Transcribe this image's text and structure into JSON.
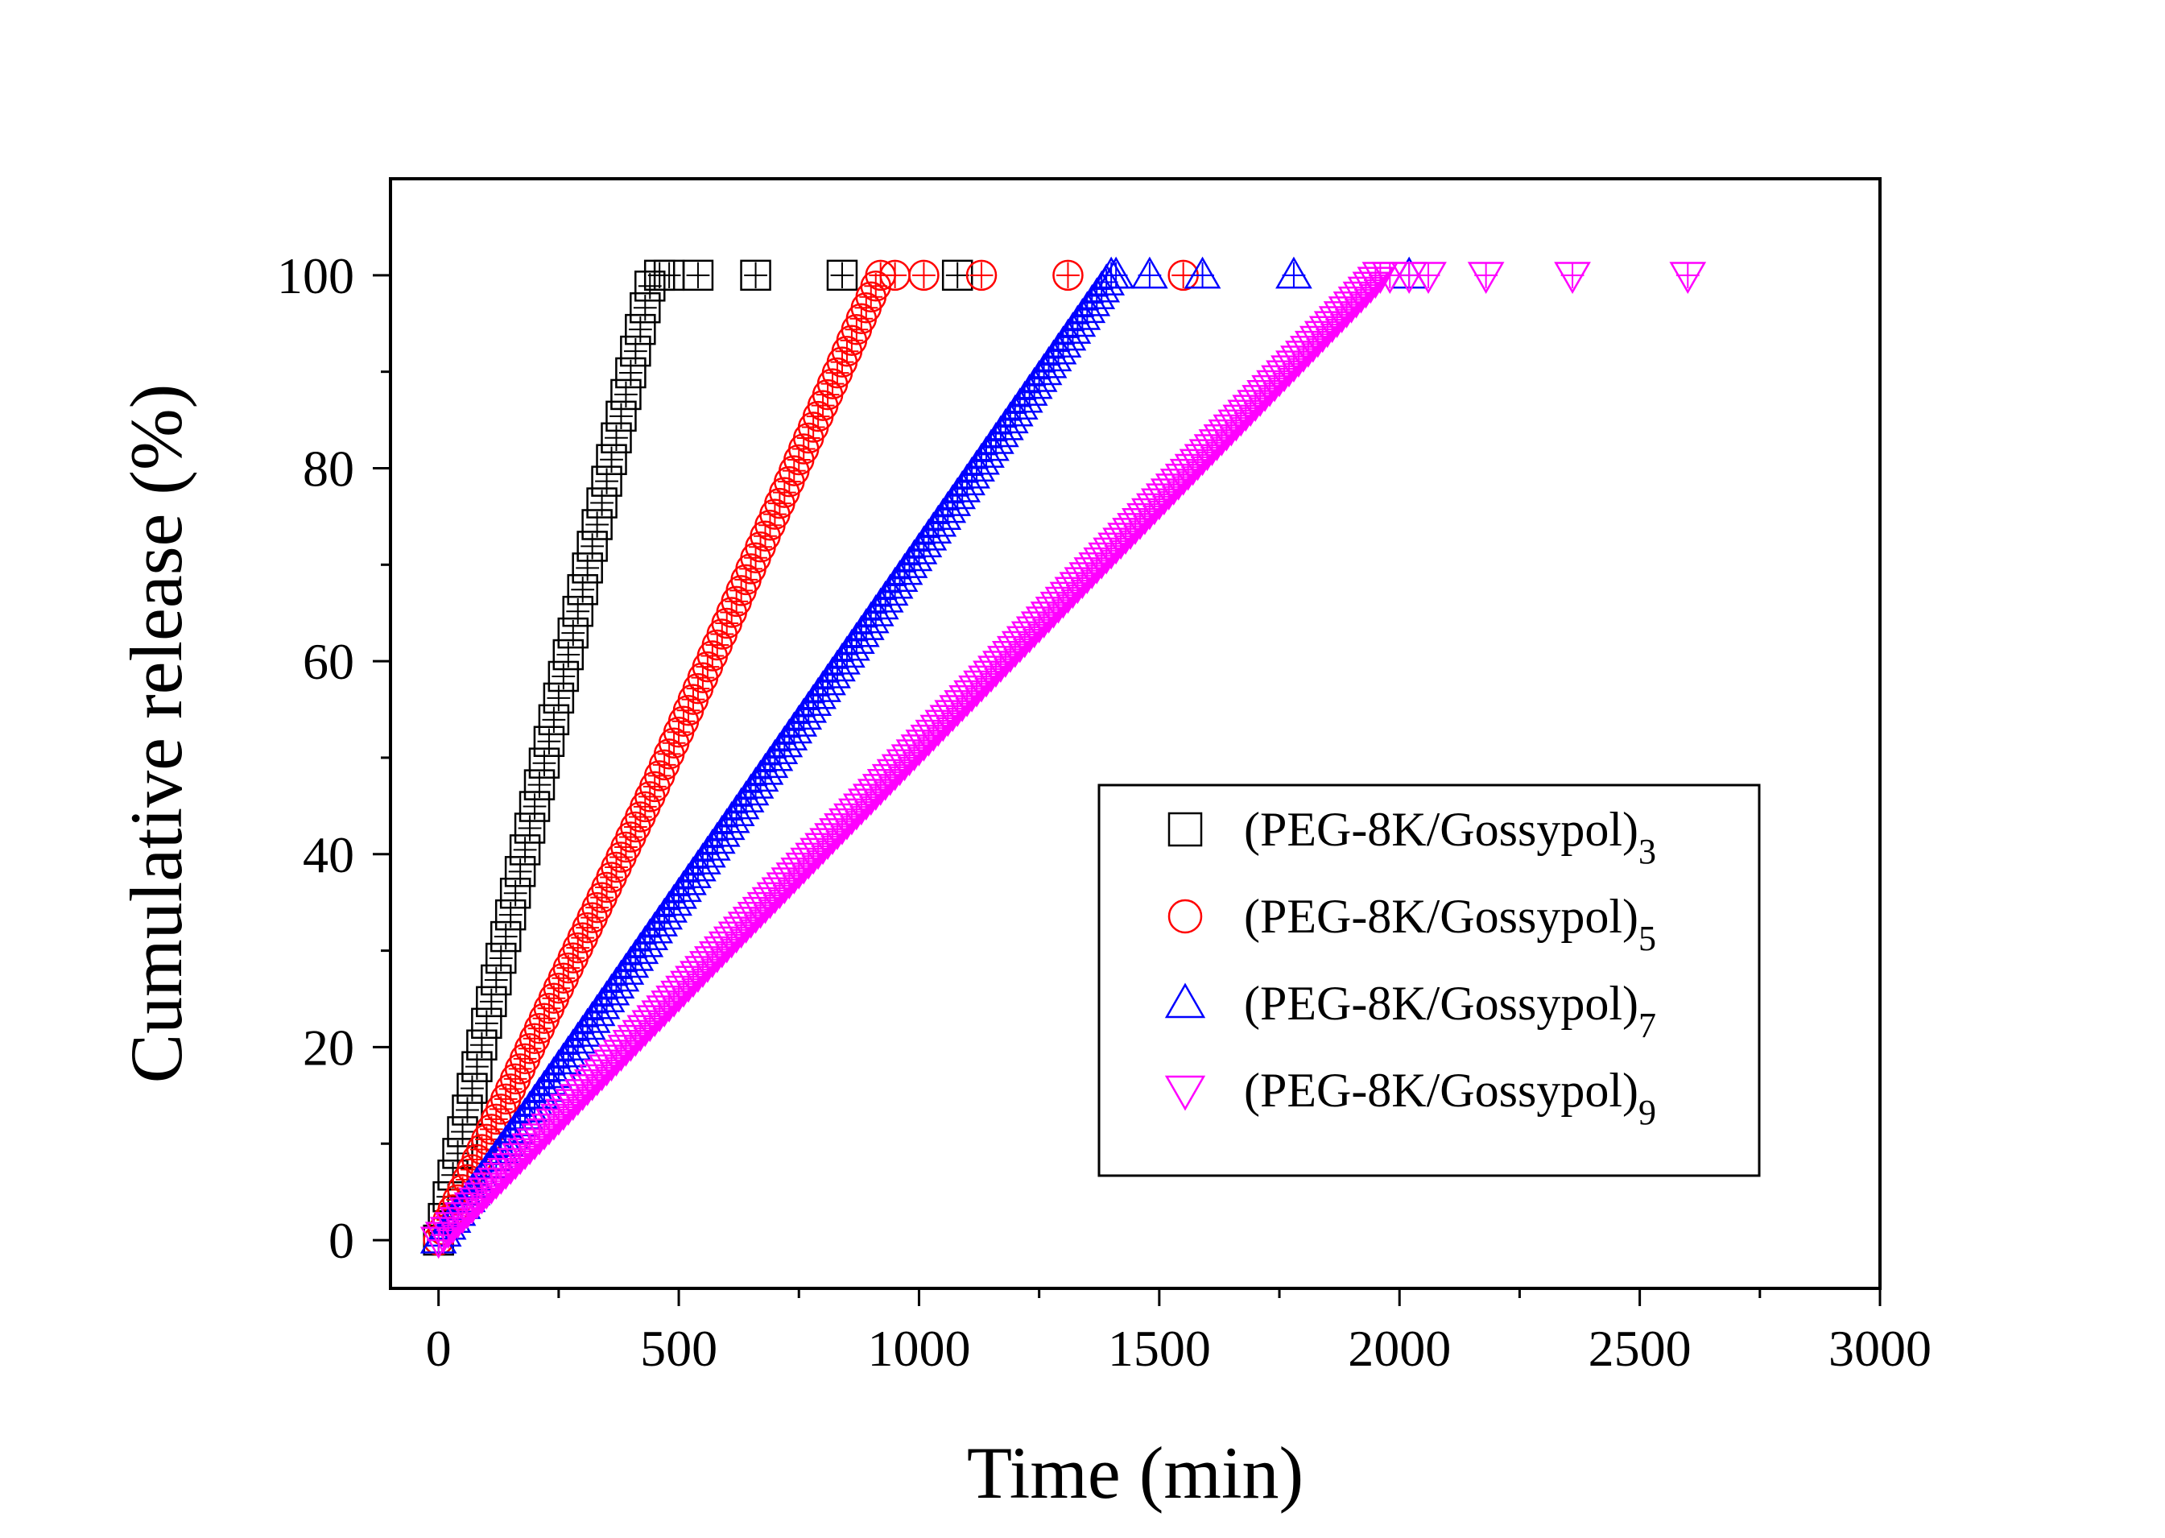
{
  "chart_data": {
    "type": "scatter",
    "title": "",
    "xlabel": "Time (min)",
    "ylabel": "Cumulative release (%)",
    "xlim": [
      -100,
      3000
    ],
    "ylim": [
      -5,
      110
    ],
    "x_ticks": [
      0,
      500,
      1000,
      1500,
      2000,
      2500,
      3000
    ],
    "y_ticks": [
      0,
      20,
      40,
      60,
      80,
      100
    ],
    "x_tick_labels": [
      "0",
      "500",
      "1000",
      "1500",
      "2000",
      "2500",
      "3000"
    ],
    "y_tick_labels": [
      "0",
      "20",
      "40",
      "60",
      "80",
      "100"
    ],
    "grid": false,
    "legend_position": "right, middle-lower",
    "series": [
      {
        "name": "(PEG-8K/Gossypol)",
        "subscript": "3",
        "color": "#000000",
        "marker": "square",
        "ramp": [
          [
            0,
            0
          ],
          [
            445,
            100
          ]
        ],
        "interval": 10,
        "plateau_x": [
          460,
          480,
          540,
          660,
          840,
          1080
        ],
        "plateau_y": 100
      },
      {
        "name": "(PEG-8K/Gossypol)",
        "subscript": "5",
        "color": "#ff0000",
        "marker": "circle",
        "ramp": [
          [
            0,
            0
          ],
          [
            450,
            47
          ],
          [
            760,
            82
          ],
          [
            920,
            100
          ]
        ],
        "interval": 10,
        "plateau_x": [
          950,
          1010,
          1130,
          1310,
          1550
        ],
        "plateau_y": 100
      },
      {
        "name": "(PEG-8K/Gossypol)",
        "subscript": "7",
        "color": "#0000ff",
        "marker": "triangle-up",
        "ramp": [
          [
            0,
            0
          ],
          [
            1400,
            100
          ]
        ],
        "interval": 10,
        "plateau_x": [
          1410,
          1480,
          1590,
          1780,
          2020
        ],
        "plateau_y": 100
      },
      {
        "name": "(PEG-8K/Gossypol)",
        "subscript": "9",
        "color": "#ff00ff",
        "marker": "triangle-down",
        "ramp": [
          [
            0,
            0
          ],
          [
            1960,
            100
          ]
        ],
        "interval": 10,
        "plateau_x": [
          1980,
          2020,
          2060,
          2180,
          2360,
          2600
        ],
        "plateau_y": 100
      }
    ]
  }
}
